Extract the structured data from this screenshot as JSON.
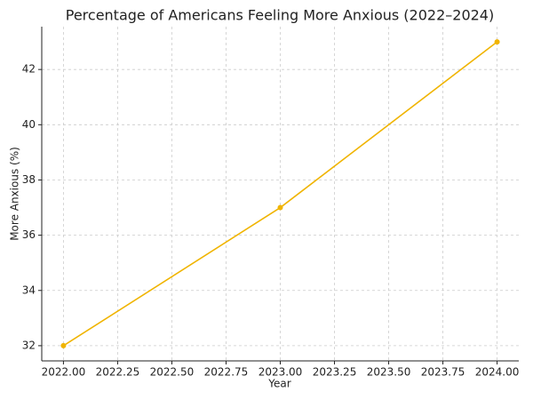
{
  "chart_data": {
    "type": "line",
    "title": "Percentage of Americans Feeling More Anxious (2022–2024)",
    "x_label": "Year",
    "y_label": "More Anxious (%)",
    "x": [
      2022,
      2023,
      2024
    ],
    "series": [
      {
        "color": "#f0b400",
        "values": [
          32,
          37,
          43
        ]
      }
    ],
    "xlim": [
      2021.9,
      2024.1
    ],
    "xticks": [
      {
        "value": 2022,
        "label": "2022.00"
      },
      {
        "value": 2022.25,
        "label": "2022.25"
      },
      {
        "value": 2022.5,
        "label": "2022.50"
      },
      {
        "value": 2022.75,
        "label": "2022.75"
      },
      {
        "value": 2023,
        "label": "2023.00"
      },
      {
        "value": 2023.25,
        "label": "2023.25"
      },
      {
        "value": 2023.5,
        "label": "2023.50"
      },
      {
        "value": 2023.75,
        "label": "2023.75"
      },
      {
        "value": 2024,
        "label": "2024.00"
      }
    ],
    "ylim": [
      31.45,
      43.55
    ],
    "yticks": [
      32,
      34,
      36,
      38,
      40,
      42
    ],
    "grid": true
  }
}
